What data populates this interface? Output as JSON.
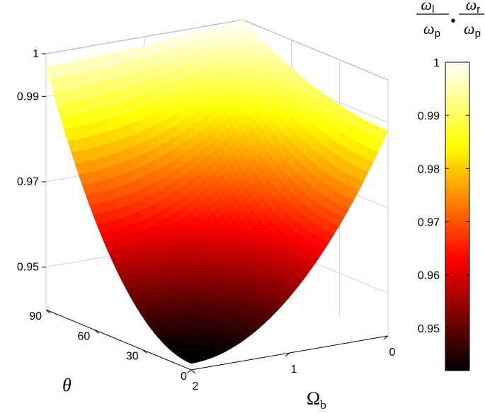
{
  "chart_data": {
    "type": "surface3d",
    "colormap": "hot",
    "z_axis": {
      "ticks": [
        "0.95",
        "0.97",
        "0.99",
        "1"
      ],
      "range": [
        0.94,
        1.0
      ]
    },
    "theta_axis": {
      "label": "θ",
      "ticks": [
        "0",
        "30",
        "60",
        "90"
      ],
      "range": [
        0,
        90
      ]
    },
    "omega_axis": {
      "label": "Ω",
      "label_sub": "b",
      "ticks": [
        "0",
        "1",
        "2"
      ],
      "range": [
        0,
        2
      ]
    },
    "colorbar": {
      "title": {
        "num1": "ω",
        "sub1": "l",
        "den1": "ω",
        "dsub1": "p",
        "sep": "•",
        "num2": "ω",
        "sub2": "r",
        "den2": "ω",
        "dsub2": "p"
      },
      "ticks": [
        "0.95",
        "0.96",
        "0.97",
        "0.98",
        "0.99",
        "1"
      ],
      "range": [
        0.942,
        1.0
      ]
    },
    "surface": {
      "z_min": 0.9415,
      "z_at_theta90_omega0": 1.0,
      "z_at_theta0_omega2": 0.9415,
      "z_at_theta0_omega0": 0.988,
      "z_at_theta90_omega2": 0.997
    },
    "grid": true
  }
}
